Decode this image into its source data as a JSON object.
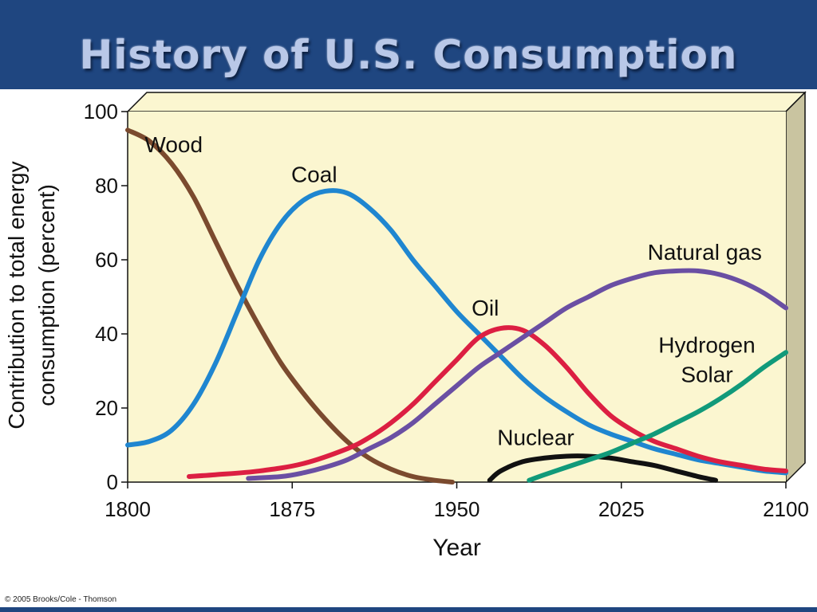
{
  "slide": {
    "title": "History of U.S. Consumption",
    "copyright": "© 2005 Brooks/Cole - Thomson"
  },
  "colors": {
    "background": "#1f4680",
    "plot_fill": "#fbf6d0",
    "box_top": "#fbf6d0",
    "box_side": "#c9c4a0"
  },
  "chart_data": {
    "type": "line",
    "xlabel": "Year",
    "ylabel": "Contribution to total energy consumption (percent)",
    "ylabel_lines": [
      "Contribution to total energy",
      "consumption (percent)"
    ],
    "xlim": [
      1800,
      2100
    ],
    "ylim": [
      0,
      100
    ],
    "xticks": [
      1800,
      1875,
      1950,
      2025,
      2100
    ],
    "yticks": [
      0,
      20,
      40,
      60,
      80,
      100
    ],
    "grid": false,
    "series": [
      {
        "name": "Wood",
        "color": "#7b4a2e",
        "x": [
          1800,
          1810,
          1820,
          1830,
          1840,
          1850,
          1860,
          1870,
          1880,
          1890,
          1900,
          1910,
          1920,
          1930,
          1940,
          1948
        ],
        "y": [
          95,
          92,
          86,
          77,
          65,
          53,
          42,
          32,
          24,
          17,
          11,
          6.5,
          3.5,
          1.5,
          0.5,
          0
        ]
      },
      {
        "name": "Coal",
        "color": "#1f86d0",
        "x": [
          1800,
          1810,
          1820,
          1830,
          1840,
          1850,
          1860,
          1870,
          1880,
          1890,
          1900,
          1910,
          1920,
          1930,
          1940,
          1950,
          1960,
          1970,
          1980,
          1990,
          2000,
          2010,
          2020,
          2030,
          2040,
          2050,
          2060,
          2070,
          2080,
          2090,
          2100
        ],
        "y": [
          10,
          11,
          14,
          21,
          32,
          46,
          60,
          70,
          76,
          78.5,
          78,
          74,
          68,
          60,
          53,
          46,
          40,
          34,
          28,
          23,
          19,
          15.5,
          13,
          11,
          9,
          7.5,
          6,
          5,
          4,
          3,
          2.5
        ]
      },
      {
        "name": "Oil",
        "color": "#dc1f42",
        "x": [
          1828,
          1840,
          1860,
          1880,
          1900,
          1910,
          1920,
          1930,
          1940,
          1950,
          1960,
          1970,
          1980,
          1990,
          2000,
          2010,
          2020,
          2030,
          2040,
          2050,
          2060,
          2070,
          2080,
          2090,
          2100
        ],
        "y": [
          1.5,
          2,
          3,
          5,
          9,
          12,
          16,
          21,
          27,
          33,
          39,
          41.5,
          41,
          37,
          31,
          24,
          18,
          14,
          11,
          9,
          7,
          5.5,
          4.5,
          3.5,
          3
        ]
      },
      {
        "name": "Natural gas",
        "color": "#6a4fa3",
        "x": [
          1855,
          1870,
          1880,
          1890,
          1900,
          1910,
          1920,
          1930,
          1940,
          1950,
          1960,
          1970,
          1980,
          1990,
          2000,
          2010,
          2020,
          2030,
          2040,
          2050,
          2060,
          2070,
          2080,
          2090,
          2100
        ],
        "y": [
          1,
          1.5,
          2.5,
          4,
          6,
          9,
          12,
          16,
          21,
          26,
          31,
          35,
          39,
          43,
          47,
          50,
          53,
          55,
          56.5,
          57,
          57,
          56,
          54,
          51,
          47
        ]
      },
      {
        "name": "Nuclear",
        "color": "#111111",
        "x": [
          1965,
          1970,
          1980,
          1990,
          2000,
          2010,
          2020,
          2030,
          2040,
          2050,
          2060,
          2068
        ],
        "y": [
          0.5,
          3,
          5.5,
          6.5,
          7,
          7,
          6.5,
          5.5,
          4.5,
          3,
          1.5,
          0.5
        ]
      },
      {
        "name": "Hydrogen Solar",
        "label_lines": [
          "Hydrogen",
          "Solar"
        ],
        "color": "#119a7a",
        "x": [
          1983,
          1990,
          2000,
          2010,
          2020,
          2030,
          2040,
          2050,
          2060,
          2070,
          2080,
          2090,
          2100
        ],
        "y": [
          0.5,
          2,
          4,
          6,
          8,
          10.5,
          13,
          16,
          19,
          22.5,
          26.5,
          31,
          35
        ]
      }
    ]
  }
}
